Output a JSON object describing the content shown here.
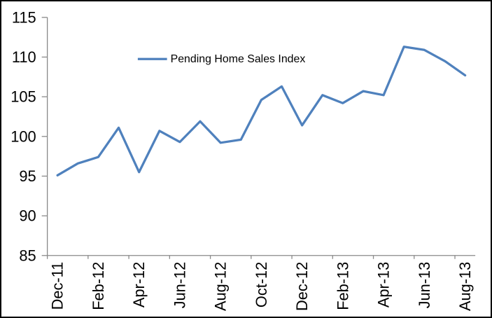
{
  "window": {
    "background": "#FFFFFF",
    "border_color": "#000000"
  },
  "chart_data": {
    "type": "line",
    "title": "",
    "xlabel": "",
    "ylabel": "",
    "grid": false,
    "legend_position": "top-center",
    "categories": [
      "Dec-11",
      "Jan-12",
      "Feb-12",
      "Mar-12",
      "Apr-12",
      "May-12",
      "Jun-12",
      "Jul-12",
      "Aug-12",
      "Sep-12",
      "Oct-12",
      "Nov-12",
      "Dec-12",
      "Jan-13",
      "Feb-13",
      "Mar-13",
      "Apr-13",
      "May-13",
      "Jun-13",
      "Jul-13",
      "Aug-13"
    ],
    "x_tick_labels": [
      "Dec-11",
      "Feb-12",
      "Apr-12",
      "Jun-12",
      "Aug-12",
      "Oct-12",
      "Dec-12",
      "Feb-13",
      "Apr-13",
      "Jun-13",
      "Aug-13"
    ],
    "x_label_interval": 2,
    "series": [
      {
        "name": "Pending Home Sales Index",
        "color": "#4F81BD",
        "values": [
          95.1,
          96.6,
          97.4,
          101.1,
          95.5,
          100.7,
          99.3,
          101.9,
          99.2,
          99.6,
          104.6,
          106.3,
          101.4,
          105.2,
          104.2,
          105.7,
          105.2,
          111.3,
          110.9,
          109.5,
          107.7
        ]
      }
    ],
    "ylim": [
      85,
      115
    ],
    "y_ticks": [
      85,
      90,
      95,
      100,
      105,
      110,
      115
    ],
    "axis_color": "#898989",
    "tick_label_color": "#000000"
  }
}
